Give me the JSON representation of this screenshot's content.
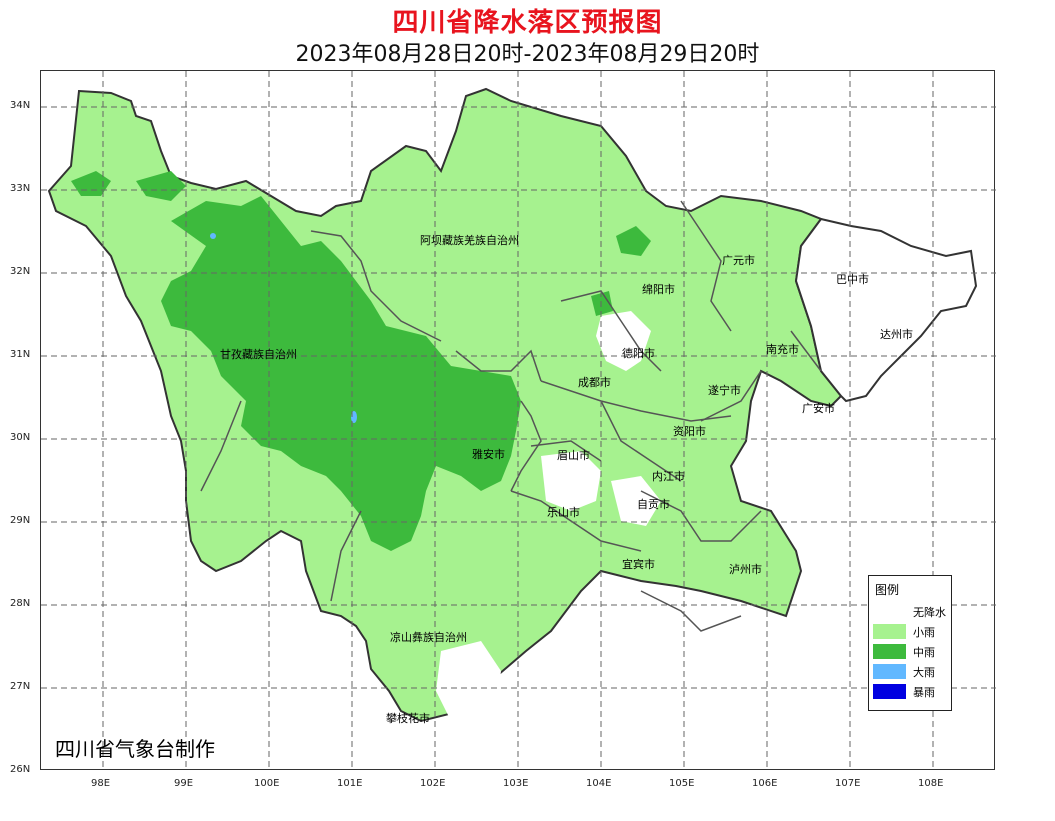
{
  "title": "四川省降水落区预报图",
  "subtitle": "2023年08月28日20时-2023年08月29日20时",
  "credit": "四川省气象台制作",
  "axes": {
    "x_ticks": [
      "98E",
      "99E",
      "100E",
      "101E",
      "102E",
      "103E",
      "104E",
      "105E",
      "106E",
      "107E",
      "108E"
    ],
    "y_ticks": [
      "34N",
      "33N",
      "32N",
      "31N",
      "30N",
      "29N",
      "28N",
      "27N",
      "26N"
    ]
  },
  "legend": {
    "title": "图例",
    "items": [
      {
        "label": "无降水",
        "color": "#ffffff"
      },
      {
        "label": "小雨",
        "color": "#a6f28f"
      },
      {
        "label": "中雨",
        "color": "#3dba3d"
      },
      {
        "label": "大雨",
        "color": "#61b8ff"
      },
      {
        "label": "暴雨",
        "color": "#0000e1"
      }
    ]
  },
  "regions": {
    "aba": "阿坝藏族羌族自治州",
    "ganzi": "甘孜藏族自治州",
    "guangyuan": "广元市",
    "bazhong": "巴中市",
    "mianyang": "绵阳市",
    "dazhou": "达州市",
    "nanchong": "南充市",
    "deyang": "德阳市",
    "chengdu": "成都市",
    "suining": "遂宁市",
    "guangan": "广安市",
    "yaan": "雅安市",
    "ziyang": "资阳市",
    "meishan": "眉山市",
    "neijiang": "内江市",
    "zigong": "自贡市",
    "leshan": "乐山市",
    "yibin": "宜宾市",
    "luzhou": "泸州市",
    "liangshan": "凉山彝族自治州",
    "panzhihua": "攀枝花市"
  },
  "colors": {
    "title": "#e8141e",
    "no_rain": "#ffffff",
    "light_rain": "#a6f28f",
    "moderate_rain": "#3dba3d",
    "heavy_rain": "#61b8ff",
    "rainstorm": "#0000e1"
  }
}
